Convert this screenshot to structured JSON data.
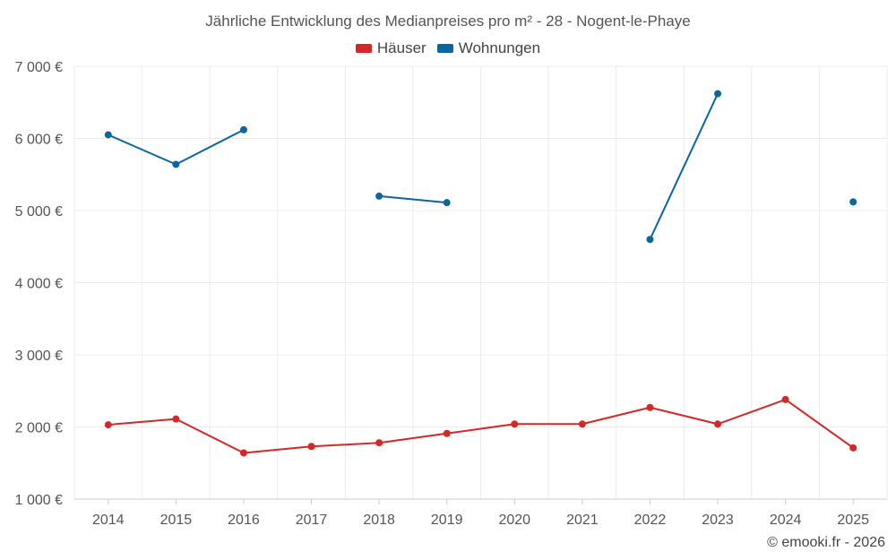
{
  "chart_data": {
    "type": "line",
    "title": "Jährliche Entwicklung des Medianpreises pro m² - 28 - Nogent-le-Phaye",
    "xlabel": "",
    "ylabel": "",
    "categories": [
      "2014",
      "2015",
      "2016",
      "2017",
      "2018",
      "2019",
      "2020",
      "2021",
      "2022",
      "2023",
      "2024",
      "2025"
    ],
    "ylim": [
      1000,
      7000
    ],
    "yticks": [
      1000,
      2000,
      3000,
      4000,
      5000,
      6000,
      7000
    ],
    "ytick_labels": [
      "1 000 €",
      "2 000 €",
      "3 000 €",
      "4 000 €",
      "5 000 €",
      "6 000 €",
      "7 000 €"
    ],
    "grid": true,
    "legend_position": "top-center",
    "series": [
      {
        "name": "Häuser",
        "color": "#d62728",
        "values": [
          2030,
          2110,
          1640,
          1730,
          1780,
          1910,
          2040,
          2040,
          2270,
          2040,
          2380,
          1710
        ]
      },
      {
        "name": "Wohnungen",
        "color": "#0b66a0",
        "values": [
          6050,
          5640,
          6120,
          null,
          5200,
          5110,
          null,
          null,
          4600,
          6620,
          null,
          5120
        ]
      }
    ]
  },
  "footer": {
    "copyright": "© emooki.fr - 2026"
  }
}
